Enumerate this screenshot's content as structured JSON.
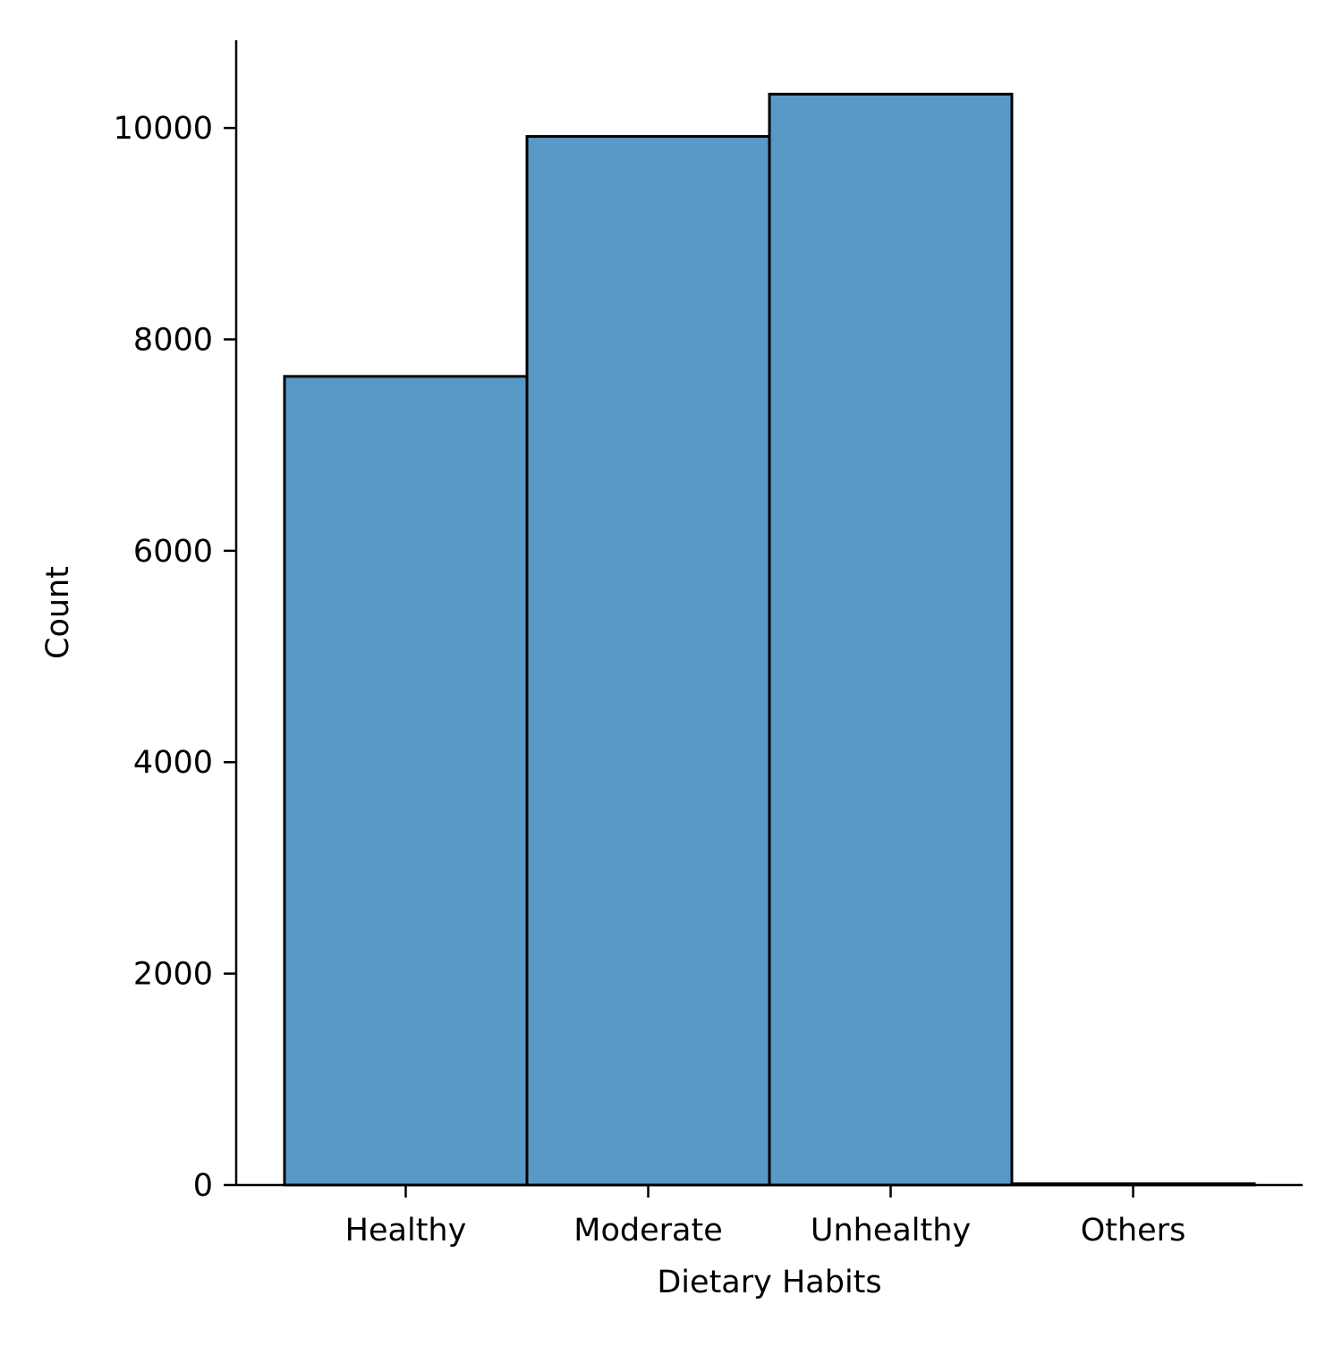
{
  "chart_data": {
    "type": "bar",
    "categories": [
      "Healthy",
      "Moderate",
      "Unhealthy",
      "Others"
    ],
    "values": [
      7650,
      9920,
      10320,
      12
    ],
    "xlabel": "Dietary Habits",
    "ylabel": "Count",
    "ylim": [
      0,
      10830
    ],
    "yticks": [
      0,
      2000,
      4000,
      6000,
      8000,
      10000
    ],
    "grid": false,
    "legend": "none",
    "bar_color": "#5899c6",
    "edge_color": "#000000"
  }
}
